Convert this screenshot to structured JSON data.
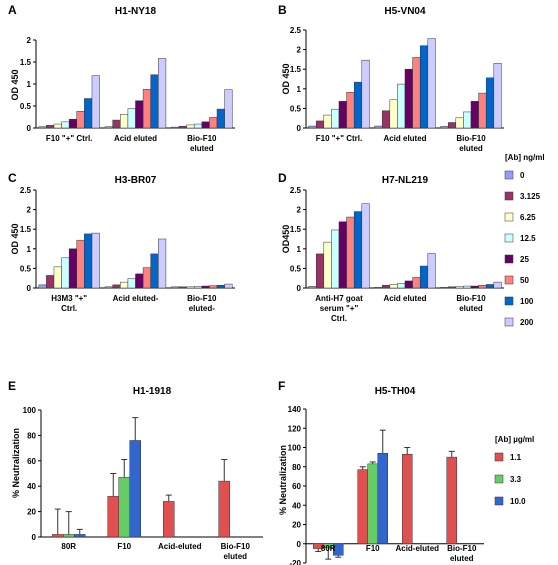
{
  "chart_data": [
    {
      "panel": "A",
      "type": "bar",
      "title": "H1-NY18",
      "ylabel": "OD 450",
      "ylim": [
        0,
        2
      ],
      "yticks": [
        0,
        0.5,
        1,
        1.5,
        2
      ],
      "tick_labels": [
        "0",
        "0.5",
        "1",
        "1.5",
        "2"
      ],
      "categories": [
        [
          "F10 \"+\" Ctrl."
        ],
        [
          "Acid eluted"
        ],
        [
          "Bio-F10",
          "eluted"
        ]
      ],
      "series_colors": [
        "#9999ff",
        "#993366",
        "#ffffcc",
        "#ccffff",
        "#660066",
        "#ff8080",
        "#0066cc",
        "#ccccff"
      ],
      "values": [
        [
          0.03,
          0.06,
          0.09,
          0.14,
          0.2,
          0.38,
          0.67,
          1.19
        ],
        [
          0.03,
          0.18,
          0.31,
          0.44,
          0.62,
          0.88,
          1.21,
          1.58
        ],
        [
          0.02,
          0.04,
          0.07,
          0.09,
          0.14,
          0.24,
          0.43,
          0.87
        ]
      ]
    },
    {
      "panel": "B",
      "type": "bar",
      "title": "H5-VN04",
      "ylabel": "OD 450",
      "ylim": [
        0,
        2.5
      ],
      "yticks": [
        0,
        0.5,
        1,
        1.5,
        2,
        2.5
      ],
      "tick_labels": [
        "0",
        "0.5",
        "1",
        "1.5",
        "2",
        "2.5"
      ],
      "categories": [
        [
          "F10 \"+\" Ctrl."
        ],
        [
          "Acid eluted"
        ],
        [
          "Bio-F10",
          "eluted"
        ]
      ],
      "series_colors": [
        "#9999ff",
        "#993366",
        "#ffffcc",
        "#ccffff",
        "#660066",
        "#ff8080",
        "#0066cc",
        "#ccccff"
      ],
      "values": [
        [
          0.05,
          0.18,
          0.33,
          0.48,
          0.68,
          0.91,
          1.17,
          1.73
        ],
        [
          0.05,
          0.44,
          0.72,
          1.12,
          1.5,
          1.8,
          2.1,
          2.28
        ],
        [
          0.04,
          0.14,
          0.26,
          0.41,
          0.68,
          0.89,
          1.28,
          1.65
        ]
      ]
    },
    {
      "panel": "C",
      "type": "bar",
      "title": "H3-BR07",
      "ylabel": "OD 450",
      "ylim": [
        0,
        2.5
      ],
      "yticks": [
        0,
        0.5,
        1,
        1.5,
        2,
        2.5
      ],
      "tick_labels": [
        "0",
        "0.5",
        "1",
        "1.5",
        "2",
        "2.5"
      ],
      "categories": [
        [
          "H3M3 \"+\"",
          "Ctrl."
        ],
        [
          "Acid eluted-"
        ],
        [
          "Bio-F10",
          "eluted-"
        ]
      ],
      "series_colors": [
        "#9999ff",
        "#993366",
        "#ffffcc",
        "#ccffff",
        "#660066",
        "#ff8080",
        "#0066cc",
        "#ccccff"
      ],
      "values": [
        [
          0.08,
          0.32,
          0.54,
          0.77,
          1.0,
          1.22,
          1.38,
          1.4
        ],
        [
          0.03,
          0.08,
          0.15,
          0.24,
          0.36,
          0.52,
          0.87,
          1.25
        ],
        [
          0.03,
          0.03,
          0.03,
          0.04,
          0.05,
          0.06,
          0.07,
          0.1
        ]
      ]
    },
    {
      "panel": "D",
      "type": "bar",
      "title": "H7-NL219",
      "ylabel": "OD450",
      "ylim": [
        0,
        2.5
      ],
      "yticks": [
        0,
        0.5,
        1,
        1.5,
        2,
        2.5
      ],
      "tick_labels": [
        "0",
        "0.5",
        "1",
        "1.5",
        "2",
        "2.5"
      ],
      "categories": [
        [
          "Anti-H7 goat",
          "serum \"+\"",
          "Ctrl."
        ],
        [
          "Acid eluted"
        ],
        [
          "Bio-F10",
          "eluted"
        ]
      ],
      "series_colors": [
        "#9999ff",
        "#993366",
        "#ffffcc",
        "#ccffff",
        "#660066",
        "#ff8080",
        "#0066cc",
        "#ccccff"
      ],
      "values": [
        [
          0.04,
          0.87,
          1.17,
          1.48,
          1.69,
          1.81,
          1.95,
          2.15
        ],
        [
          0.02,
          0.07,
          0.09,
          0.12,
          0.18,
          0.27,
          0.56,
          0.88
        ],
        [
          0.02,
          0.03,
          0.04,
          0.05,
          0.05,
          0.07,
          0.09,
          0.15
        ]
      ]
    },
    {
      "panel": "E",
      "type": "bar",
      "title": "H1-1918",
      "ylabel": "% Neutralization",
      "ylim": [
        0,
        100
      ],
      "yticks": [
        0,
        20,
        40,
        60,
        80,
        100
      ],
      "tick_labels": [
        "0",
        "20",
        "40",
        "60",
        "80",
        "100"
      ],
      "categories": [
        [
          "80R"
        ],
        [
          "F10"
        ],
        [
          "Acid-eluted"
        ],
        [
          "Bio-F10",
          "eluted"
        ]
      ],
      "series_colors": [
        "#e05050",
        "#66cc66",
        "#3366cc"
      ],
      "values": [
        [
          2,
          2,
          2
        ],
        [
          32,
          47,
          76
        ],
        [
          28,
          null,
          null
        ],
        [
          44,
          null,
          null
        ]
      ],
      "errors": [
        [
          20,
          18,
          4
        ],
        [
          18,
          14,
          18
        ],
        [
          5,
          null,
          null
        ],
        [
          17,
          null,
          null
        ]
      ]
    },
    {
      "panel": "F",
      "type": "bar",
      "title": "H5-TH04",
      "ylabel": "% Neutralization",
      "ylim": [
        -20,
        140
      ],
      "yticks": [
        -20,
        0,
        20,
        40,
        60,
        80,
        100,
        120,
        140
      ],
      "tick_labels": [
        "-20",
        "0",
        "20",
        "40",
        "60",
        "80",
        "100",
        "120",
        "140"
      ],
      "categories": [
        [
          "80R"
        ],
        [
          "F10"
        ],
        [
          "Acid-eluted"
        ],
        [
          "Bio-F10",
          "eluted"
        ]
      ],
      "series_colors": [
        "#e05050",
        "#66cc66",
        "#3366cc"
      ],
      "values": [
        [
          -5,
          -4,
          -12
        ],
        [
          77,
          83,
          94
        ],
        [
          93,
          null,
          null
        ],
        [
          90,
          null,
          null
        ]
      ],
      "errors": [
        [
          3,
          12,
          2
        ],
        [
          3,
          2,
          24
        ],
        [
          7,
          null,
          null
        ],
        [
          6,
          null,
          null
        ]
      ]
    }
  ],
  "legend_top": {
    "title": "[Ab] ng/ml",
    "items": [
      {
        "label": "0",
        "color": "#9999ff"
      },
      {
        "label": "3.125",
        "color": "#993366"
      },
      {
        "label": "6.25",
        "color": "#ffffcc"
      },
      {
        "label": "12.5",
        "color": "#ccffff"
      },
      {
        "label": "25",
        "color": "#660066"
      },
      {
        "label": "50",
        "color": "#ff8080"
      },
      {
        "label": "100",
        "color": "#0066cc"
      },
      {
        "label": "200",
        "color": "#ccccff"
      }
    ]
  },
  "legend_bottom": {
    "title": "[Ab] µg/ml",
    "items": [
      {
        "label": "1.1",
        "color": "#e05050"
      },
      {
        "label": "3.3",
        "color": "#66cc66"
      },
      {
        "label": "10.0",
        "color": "#3366cc"
      }
    ]
  }
}
